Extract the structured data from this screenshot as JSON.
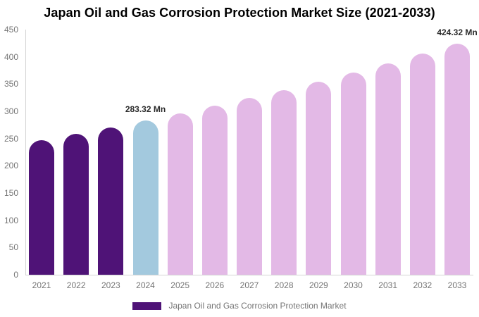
{
  "title": "Japan Oil and Gas Corrosion Protection Market Size (2021-2033)",
  "legend": {
    "label": "Japan Oil and Gas Corrosion Protection Market",
    "swatch_color": "#4f1377"
  },
  "chart_data": {
    "type": "bar",
    "title": "Japan Oil and Gas Corrosion Protection Market Size (2021-2033)",
    "unit": "Mn",
    "categories": [
      "2021",
      "2022",
      "2023",
      "2024",
      "2025",
      "2026",
      "2027",
      "2028",
      "2029",
      "2030",
      "2031",
      "2032",
      "2033"
    ],
    "values": [
      247.5,
      258.9,
      270.8,
      283.32,
      296.3,
      310.0,
      324.2,
      339.1,
      354.6,
      370.9,
      388.0,
      405.8,
      424.32
    ],
    "segments": [
      "historical",
      "historical",
      "historical",
      "base",
      "forecast",
      "forecast",
      "forecast",
      "forecast",
      "forecast",
      "forecast",
      "forecast",
      "forecast",
      "forecast"
    ],
    "colors": {
      "historical": "#4f1377",
      "base": "#a3c9de",
      "forecast": "#e3b9e6"
    },
    "data_labels": [
      {
        "category": "2024",
        "text": "283.32 Mn"
      },
      {
        "category": "2033",
        "text": "424.32 Mn"
      }
    ],
    "ylim": [
      0,
      450
    ],
    "y_ticks": [
      0,
      50,
      100,
      150,
      200,
      250,
      300,
      350,
      400,
      450
    ],
    "xlabel": "",
    "ylabel": "",
    "grid": false,
    "legend_position": "bottom",
    "legend_entries": [
      "Japan Oil and Gas Corrosion Protection Market"
    ]
  }
}
